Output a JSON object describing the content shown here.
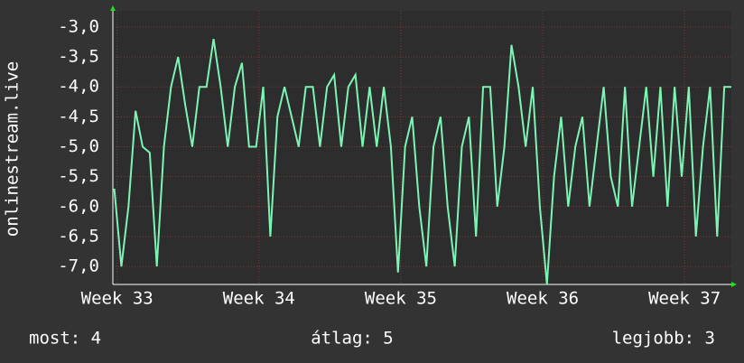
{
  "chart_data": {
    "type": "line",
    "ylabel": "onlinestream.live",
    "x": [
      32.98,
      33.03,
      33.08,
      33.13,
      33.18,
      33.23,
      33.28,
      33.33,
      33.38,
      33.43,
      33.48,
      33.53,
      33.58,
      33.63,
      33.68,
      33.73,
      33.78,
      33.83,
      33.88,
      33.93,
      33.98,
      34.03,
      34.08,
      34.13,
      34.18,
      34.23,
      34.28,
      34.33,
      34.38,
      34.43,
      34.48,
      34.53,
      34.58,
      34.63,
      34.68,
      34.73,
      34.78,
      34.83,
      34.88,
      34.93,
      34.98,
      35.03,
      35.08,
      35.13,
      35.18,
      35.23,
      35.28,
      35.33,
      35.38,
      35.43,
      35.48,
      35.53,
      35.58,
      35.63,
      35.68,
      35.73,
      35.78,
      35.83,
      35.88,
      35.93,
      35.98,
      36.03,
      36.08,
      36.13,
      36.18,
      36.23,
      36.28,
      36.33,
      36.38,
      36.43,
      36.48,
      36.53,
      36.58,
      36.63,
      36.68,
      36.73,
      36.78,
      36.83,
      36.88,
      36.93,
      36.98,
      37.03,
      37.08,
      37.13,
      37.18,
      37.23,
      37.28,
      37.33
    ],
    "series": [
      {
        "name": "onlinestream.live",
        "color": "#7cf5b4",
        "values": [
          -5.7,
          -7.0,
          -6.0,
          -4.4,
          -5.0,
          -5.1,
          -7.0,
          -5.0,
          -4.0,
          -3.5,
          -4.3,
          -5.0,
          -4.0,
          -4.0,
          -3.2,
          -4.0,
          -5.0,
          -4.0,
          -3.6,
          -5.0,
          -5.0,
          -4.0,
          -6.5,
          -4.5,
          -4.0,
          -4.5,
          -5.0,
          -4.0,
          -4.0,
          -5.0,
          -4.0,
          -3.8,
          -5.0,
          -4.0,
          -3.8,
          -5.0,
          -4.0,
          -5.0,
          -4.0,
          -5.0,
          -7.1,
          -5.0,
          -4.5,
          -6.0,
          -7.0,
          -5.0,
          -4.5,
          -6.0,
          -7.0,
          -5.0,
          -4.5,
          -6.5,
          -4.0,
          -4.0,
          -6.0,
          -5.0,
          -3.3,
          -4.0,
          -5.0,
          -4.0,
          -6.0,
          -7.3,
          -5.5,
          -4.5,
          -6.0,
          -5.0,
          -4.5,
          -6.0,
          -5.0,
          -4.0,
          -5.5,
          -6.0,
          -4.0,
          -6.0,
          -5.0,
          -4.0,
          -5.5,
          -4.0,
          -6.0,
          -4.0,
          -5.5,
          -4.0,
          -6.5,
          -5.0,
          -4.0,
          -6.5,
          -4.0,
          -4.0
        ]
      }
    ],
    "xlim": [
      32.97,
      37.33
    ],
    "xticks": [
      {
        "value": 33,
        "label": "Week 33"
      },
      {
        "value": 34,
        "label": "Week 34"
      },
      {
        "value": 35,
        "label": "Week 35"
      },
      {
        "value": 36,
        "label": "Week 36"
      },
      {
        "value": 37,
        "label": "Week 37"
      }
    ],
    "ylim": [
      -7.3,
      -2.73
    ],
    "yticks": [
      {
        "value": -3,
        "label": "-3,0"
      },
      {
        "value": -3.5,
        "label": "-3,5"
      },
      {
        "value": -4,
        "label": "-4,0"
      },
      {
        "value": -4.5,
        "label": "-4,5"
      },
      {
        "value": -5,
        "label": "-5,0"
      },
      {
        "value": -5.5,
        "label": "-5,5"
      },
      {
        "value": -6,
        "label": "-6,0"
      },
      {
        "value": -6.5,
        "label": "-6,5"
      },
      {
        "value": -7,
        "label": "-7,0"
      }
    ],
    "grid": true,
    "annotations": [
      "most: 4",
      "átlag: 5",
      "legjobb: 3"
    ]
  }
}
